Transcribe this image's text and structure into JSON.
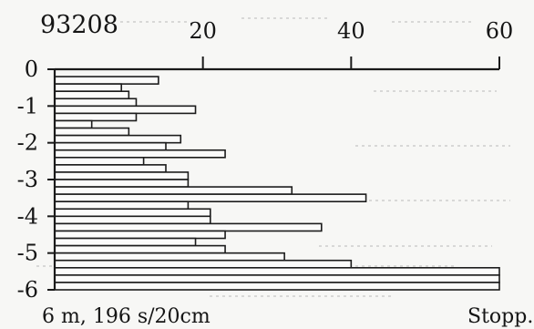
{
  "chart_data": {
    "type": "bar",
    "orientation": "horizontal",
    "id_label": "93208",
    "x_ticks": [
      "20",
      "40",
      "60"
    ],
    "x_tick_values": [
      20,
      40,
      60
    ],
    "xlim": [
      0,
      60
    ],
    "y_ticks": [
      "0",
      "-1",
      "-2",
      "-3",
      "-4",
      "-5",
      "-6"
    ],
    "y_tick_values": [
      0,
      -1,
      -2,
      -3,
      -4,
      -5,
      -6
    ],
    "ylim": [
      0,
      -6
    ],
    "caption_left": "6 m, 196 s/20cm",
    "caption_right": "Stopp.",
    "depth_top": [
      -0.2,
      -0.4,
      -0.6,
      -0.8,
      -1.0,
      -1.2,
      -1.4,
      -1.6,
      -1.8,
      -2.0,
      -2.2,
      -2.4,
      -2.6,
      -2.8,
      -3.0,
      -3.2,
      -3.4,
      -3.6,
      -3.8,
      -4.0,
      -4.2,
      -4.4,
      -4.6,
      -4.8,
      -5.0,
      -5.2,
      -5.4,
      -5.6,
      -5.8
    ],
    "values": [
      14,
      9,
      10,
      11,
      19,
      11,
      5,
      10,
      17,
      15,
      23,
      12,
      15,
      18,
      18,
      32,
      42,
      18,
      21,
      21,
      36,
      23,
      19,
      23,
      31,
      40,
      60,
      60,
      60
    ]
  },
  "colors": {
    "paper": "#f7f7f5",
    "ink": "#151515",
    "bar_fill": "#fbfbfa",
    "faint": "#b9b9b9"
  }
}
